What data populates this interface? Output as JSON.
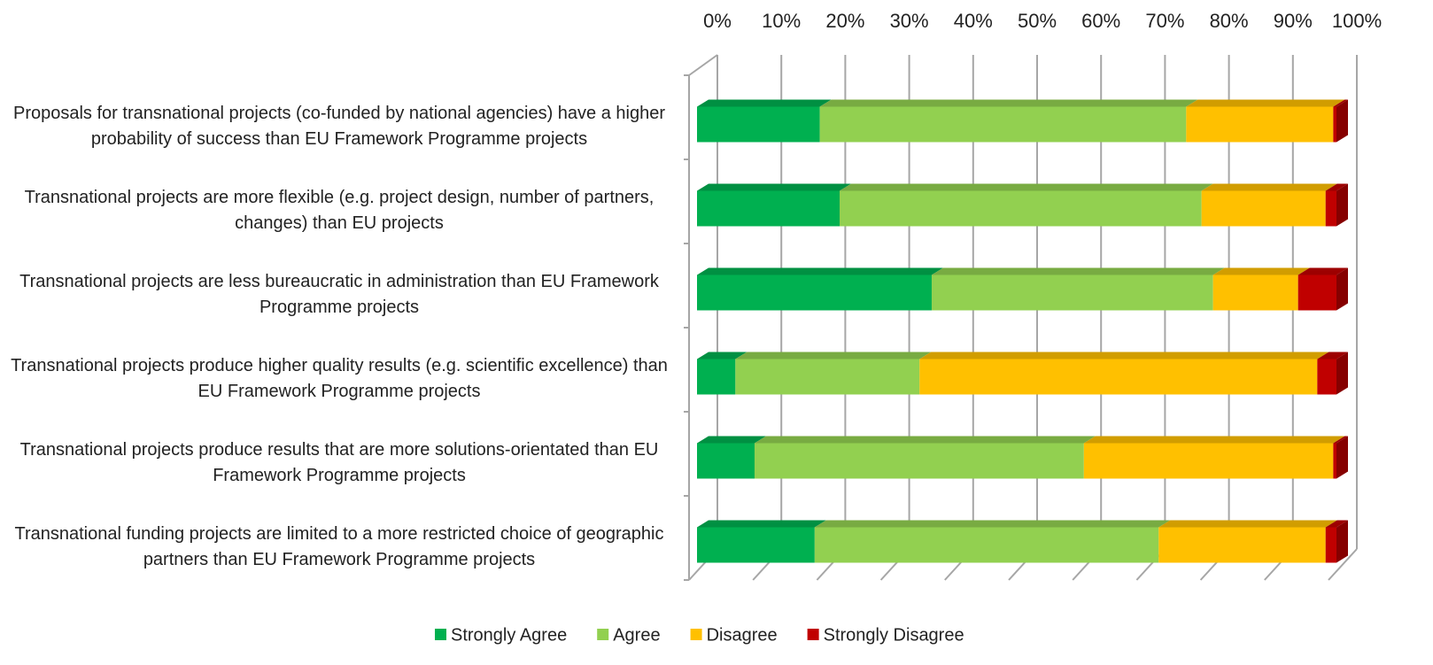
{
  "chart_data": {
    "type": "stacked_bar_horizontal",
    "categories": [
      "Proposals for transnational projects (co-funded by national agencies) have a higher probability of success than EU Framework Programme projects",
      "Transnational projects are more flexible (e.g. project design, number of partners, changes) than EU projects",
      "Transnational projects are less bureaucratic in administration than EU Framework Programme projects",
      "Transnational projects produce higher quality results (e.g. scientific excellence) than EU Framework Programme projects",
      "Transnational projects produce results that are more solutions-orientated than EU Framework Programme projects",
      "Transnational funding projects are limited to a more restricted choice of geographic partners than EU Framework Programme projects"
    ],
    "series": [
      {
        "name": "Strongly Agree",
        "color": "#00b050",
        "values": [
          19.2,
          22.3,
          36.7,
          6,
          9,
          18.4
        ]
      },
      {
        "name": "Agree",
        "color": "#92d050",
        "values": [
          57.3,
          56.6,
          44,
          28.8,
          51.5,
          53.8
        ]
      },
      {
        "name": "Disagree",
        "color": "#ffc000",
        "values": [
          23,
          19.4,
          13.3,
          62.2,
          39,
          26.1
        ]
      },
      {
        "name": "Strongly Disagree",
        "color": "#c00000",
        "values": [
          0.5,
          1.7,
          6,
          3,
          0.5,
          1.7
        ]
      }
    ],
    "xlim": [
      0,
      100
    ],
    "xticks": [
      {
        "value": 0,
        "label": "0%"
      },
      {
        "value": 10,
        "label": "10%"
      },
      {
        "value": 20,
        "label": "20%"
      },
      {
        "value": 30,
        "label": "30%"
      },
      {
        "value": 40,
        "label": "40%"
      },
      {
        "value": 50,
        "label": "50%"
      },
      {
        "value": 60,
        "label": "60%"
      },
      {
        "value": 70,
        "label": "70%"
      },
      {
        "value": 80,
        "label": "80%"
      },
      {
        "value": 90,
        "label": "90%"
      },
      {
        "value": 100,
        "label": "100%"
      }
    ],
    "grid": true,
    "legend": "bottom"
  }
}
